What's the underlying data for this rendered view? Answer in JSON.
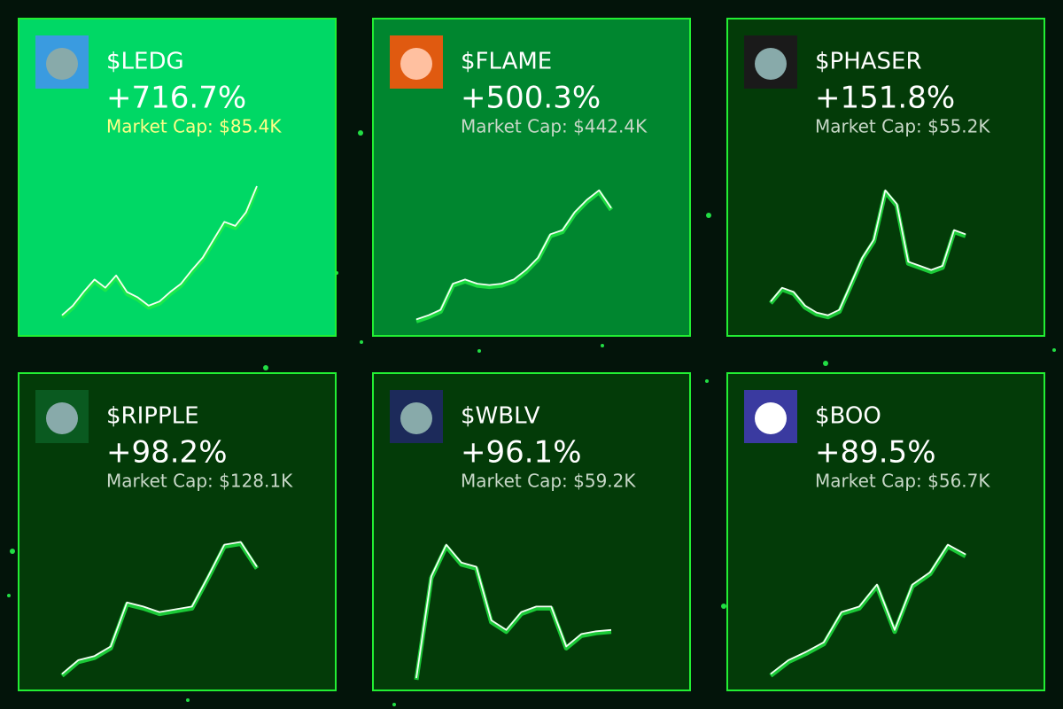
{
  "cards": [
    {
      "ticker": "$LEDG",
      "change": "+716.7%",
      "market_cap": "Market Cap: $85.4K",
      "spark": [
        6,
        13,
        23,
        32,
        26,
        35,
        23,
        19,
        13,
        16,
        23,
        29,
        39,
        48,
        61,
        74,
        71,
        81,
        100
      ]
    },
    {
      "ticker": "$FLAME",
      "change": "+500.3%",
      "market_cap": "Market Cap: $442.4K",
      "spark": [
        3,
        6,
        10,
        29,
        32,
        29,
        28,
        29,
        32,
        39,
        48,
        65,
        68,
        81,
        90,
        97,
        84
      ]
    },
    {
      "ticker": "$PHASER",
      "change": "+151.8%",
      "market_cap": "Market Cap: $55.2K",
      "spark": [
        16,
        26,
        23,
        13,
        8,
        6,
        10,
        29,
        48,
        61,
        97,
        87,
        45,
        42,
        39,
        42,
        68,
        65
      ]
    },
    {
      "ticker": "$RIPPLE",
      "change": "+98.2%",
      "market_cap": "Market Cap: $128.1K",
      "spark": [
        3,
        13,
        16,
        23,
        55,
        52,
        48,
        50,
        52,
        74,
        97,
        99,
        81
      ]
    },
    {
      "ticker": "$WBLV",
      "change": "+96.1%",
      "market_cap": "Market Cap: $59.2K",
      "spark": [
        0,
        74,
        97,
        84,
        81,
        42,
        35,
        48,
        52,
        52,
        23,
        32,
        34,
        35
      ]
    },
    {
      "ticker": "$BOO",
      "change": "+89.5%",
      "market_cap": "Market Cap: $56.7K",
      "spark": [
        3,
        13,
        19,
        26,
        48,
        52,
        68,
        35,
        68,
        77,
        97,
        90
      ]
    }
  ]
}
